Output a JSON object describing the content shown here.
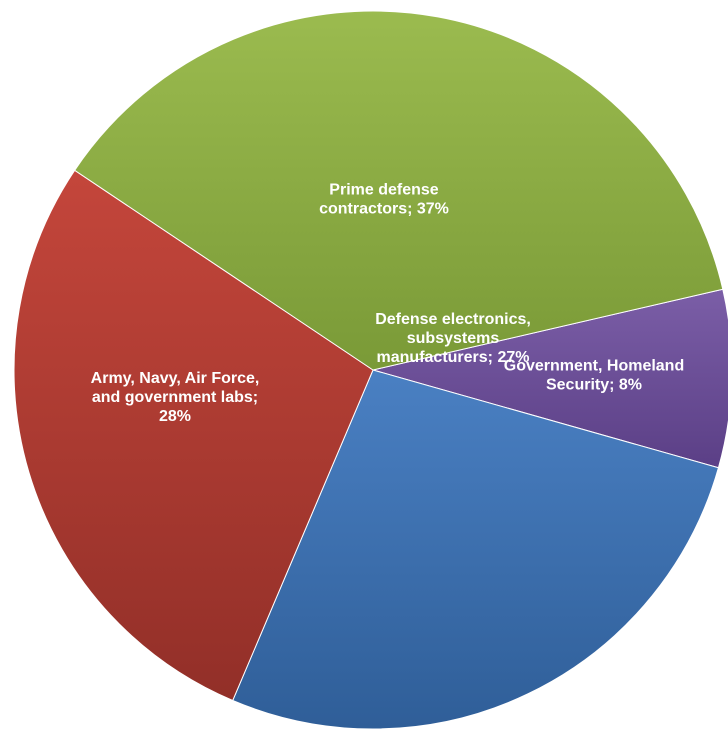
{
  "chart_data": {
    "type": "pie",
    "slices": [
      {
        "label_lines": [
          "Government, Homeland",
          "Security; 8%"
        ],
        "value": 8,
        "color": "#7b5ea7",
        "color_dark": "#5b3f86"
      },
      {
        "label_lines": [
          "Defense electronics,",
          "subsystems",
          "manufacturers; 27%"
        ],
        "value": 27,
        "color": "#4a80c3",
        "color_dark": "#2f5e98"
      },
      {
        "label_lines": [
          "Army, Navy, Air Force,",
          "and government labs;",
          "28%"
        ],
        "value": 28,
        "color": "#c4463b",
        "color_dark": "#922f28"
      },
      {
        "label_lines": [
          "Prime defense",
          "contractors; 37%"
        ],
        "value": 37,
        "color": "#9bbb4f",
        "color_dark": "#7a9a37"
      }
    ],
    "title": "",
    "legend": "none"
  }
}
